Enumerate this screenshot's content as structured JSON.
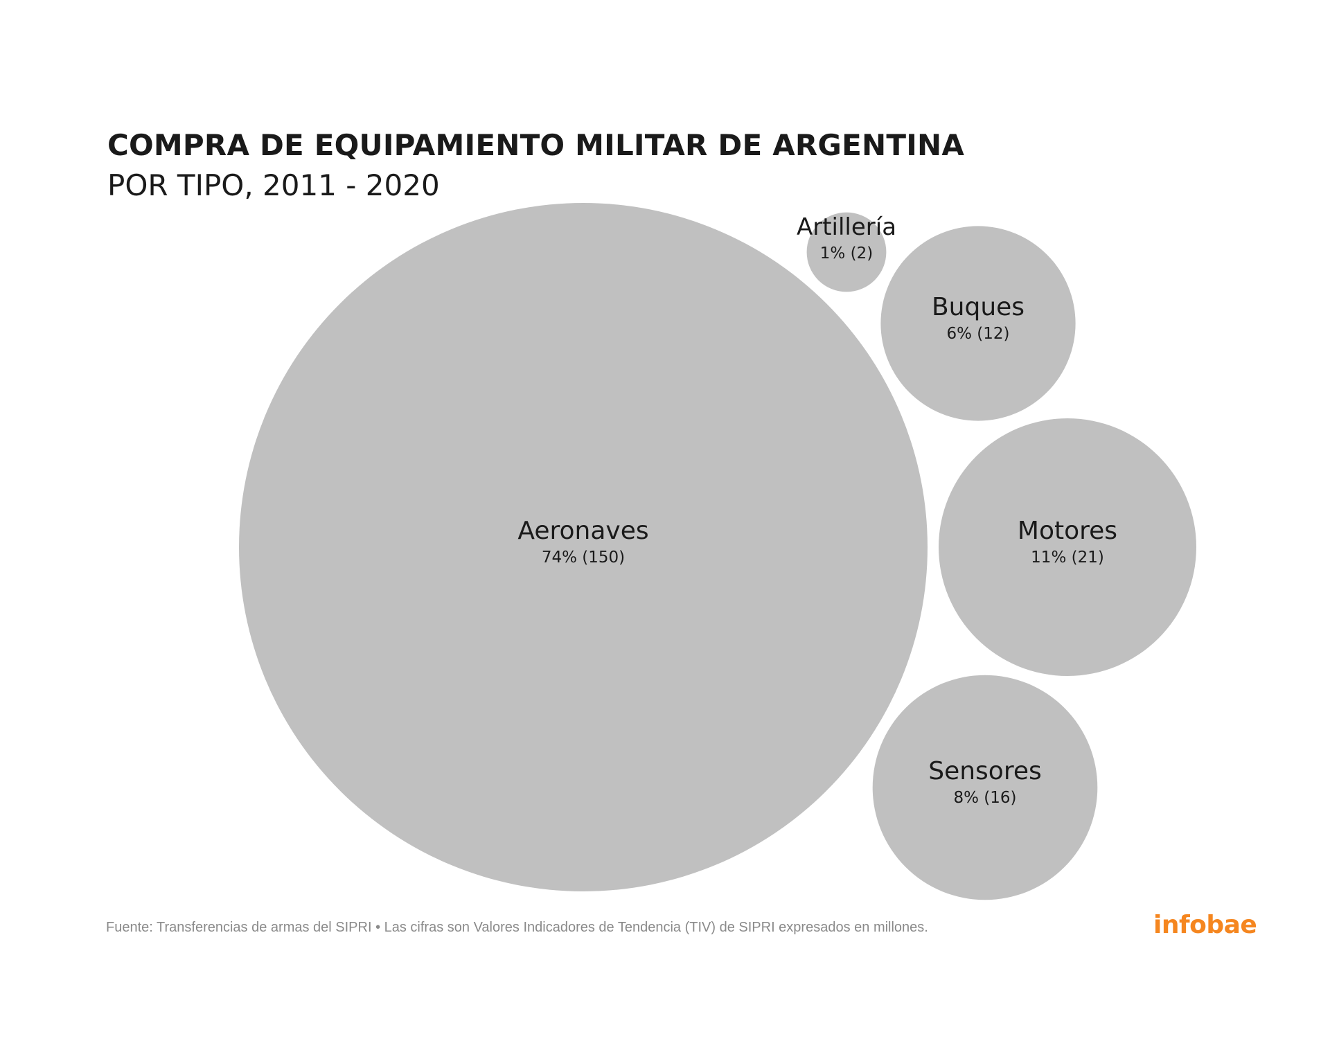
{
  "header": {
    "title": "COMPRA DE EQUIPAMIENTO MILITAR DE ARGENTINA",
    "subtitle": "POR TIPO, 2011 - 2020"
  },
  "chart_data": {
    "type": "bubble",
    "title": "COMPRA DE EQUIPAMIENTO MILITAR DE ARGENTINA",
    "subtitle": "POR TIPO, 2011 - 2020",
    "bubble_color": "#c0c0c0",
    "series": [
      {
        "name": "Aeronaves",
        "percent": 74,
        "value": 150,
        "label": "74% (150)"
      },
      {
        "name": "Artillería",
        "percent": 1,
        "value": 2,
        "label": "1% (2)"
      },
      {
        "name": "Buques",
        "percent": 6,
        "value": 12,
        "label": "6% (12)"
      },
      {
        "name": "Motores",
        "percent": 11,
        "value": 21,
        "label": "11% (21)"
      },
      {
        "name": "Sensores",
        "percent": 8,
        "value": 16,
        "label": "8% (16)"
      }
    ]
  },
  "footer": {
    "source": "Fuente: Transferencias de armas del SIPRI • Las cifras son Valores Indicadores de Tendencia (TIV) de SIPRI expresados en millones."
  },
  "brand": {
    "logo_text": "infobae",
    "color": "#f5861f"
  }
}
